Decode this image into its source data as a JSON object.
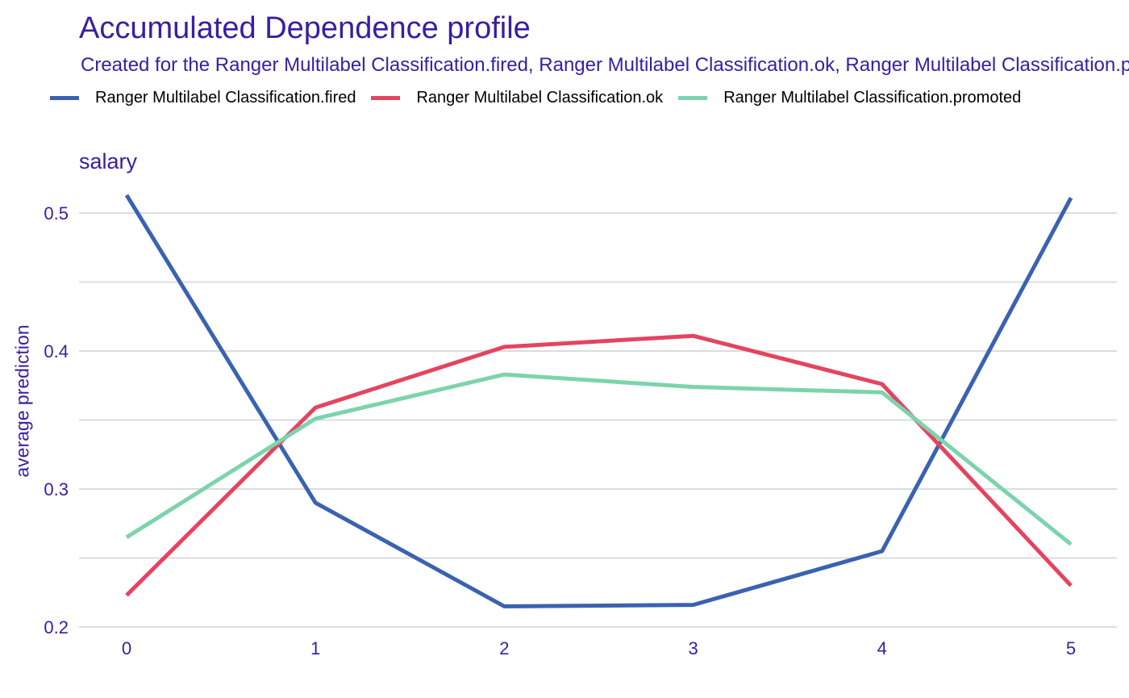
{
  "chart_data": {
    "type": "line",
    "title": "Accumulated Dependence profile",
    "subtitle": "Created for the Ranger Multilabel Classification.fired, Ranger Multilabel Classification.ok, Ranger Multilabel Classification.promoted model",
    "panel_title": "salary",
    "xlabel": "",
    "ylabel": "average prediction",
    "x": [
      0,
      1,
      2,
      3,
      4,
      5
    ],
    "xlim": [
      -0.25,
      5.25
    ],
    "ylim": [
      0.2,
      0.52
    ],
    "x_ticks": [
      "0",
      "1",
      "2",
      "3",
      "4",
      "5"
    ],
    "y_ticks": [
      "0.2",
      "0.3",
      "0.4",
      "0.5"
    ],
    "grid": true,
    "legend_position": "top",
    "series": [
      {
        "name": "Ranger Multilabel Classification.fired",
        "color": "#3a62b1",
        "values": [
          0.513,
          0.29,
          0.215,
          0.216,
          0.255,
          0.511
        ]
      },
      {
        "name": "Ranger Multilabel Classification.ok",
        "color": "#e4445f",
        "values": [
          0.223,
          0.359,
          0.403,
          0.411,
          0.376,
          0.23
        ]
      },
      {
        "name": "Ranger Multilabel Classification.promoted",
        "color": "#7bd4ac",
        "values": [
          0.265,
          0.351,
          0.383,
          0.374,
          0.37,
          0.26
        ]
      }
    ]
  }
}
